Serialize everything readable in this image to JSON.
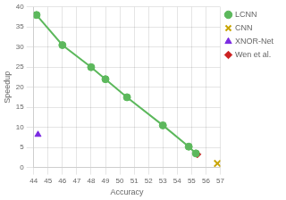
{
  "chart_data": {
    "type": "scatter",
    "xlabel": "Accuracy",
    "ylabel": "Speedup",
    "series": [
      {
        "name": "LCNN",
        "color": "#5cb85c",
        "marker": "circle",
        "line_style": "solid",
        "x": [
          44.2,
          46.0,
          48.0,
          49.0,
          50.5,
          53.0,
          54.8,
          55.3
        ],
        "values": [
          38.0,
          30.5,
          25.0,
          22.0,
          17.5,
          10.5,
          5.2,
          3.5
        ]
      },
      {
        "name": "CNN",
        "color": "#c8a400",
        "marker": "x",
        "x": [
          56.8
        ],
        "values": [
          1.0
        ]
      },
      {
        "name": "XNOR-Net",
        "color": "#7b2be2",
        "marker": "triangle",
        "x": [
          44.3
        ],
        "values": [
          8.2
        ]
      },
      {
        "name": "Wen et al.",
        "color": "#cc2222",
        "marker": "diamond",
        "x": [
          55.4
        ],
        "values": [
          3.3
        ]
      }
    ],
    "xlim": [
      44,
      57
    ],
    "ylim": [
      0,
      40
    ],
    "xticks": [
      44,
      45,
      46,
      47,
      48,
      49,
      50,
      51,
      52,
      53,
      54,
      55,
      56,
      57
    ],
    "yticks": [
      0,
      5,
      10,
      15,
      20,
      25,
      30,
      35,
      40
    ],
    "grid": true,
    "legend": "right"
  }
}
